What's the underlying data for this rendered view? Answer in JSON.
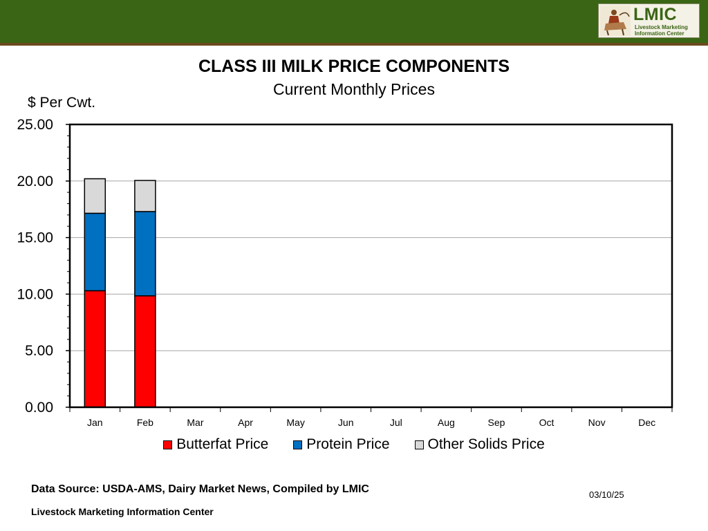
{
  "header": {
    "logo_main": "LMIC",
    "logo_line1": "Livestock Marketing",
    "logo_line2": "Information Center"
  },
  "colors": {
    "band": "#3a6514",
    "butterfat": "#ff0000",
    "protein": "#0070c0",
    "other": "#d9d9d9"
  },
  "chart_data": {
    "type": "bar",
    "stacked": true,
    "title": "CLASS III MILK PRICE COMPONENTS",
    "subtitle": "Current Monthly Prices",
    "ylabel": "$ Per Cwt.",
    "xlabel": "",
    "ylim": [
      0,
      25
    ],
    "yticks": [
      "0.00",
      "5.00",
      "10.00",
      "15.00",
      "20.00",
      "25.00"
    ],
    "grid": true,
    "legend_position": "bottom",
    "categories": [
      "Jan",
      "Feb",
      "Mar",
      "Apr",
      "May",
      "Jun",
      "Jul",
      "Aug",
      "Sep",
      "Oct",
      "Nov",
      "Dec"
    ],
    "series": [
      {
        "name": "Butterfat Price",
        "color": "#ff0000",
        "values": [
          10.3,
          9.85,
          null,
          null,
          null,
          null,
          null,
          null,
          null,
          null,
          null,
          null
        ]
      },
      {
        "name": "Protein Price",
        "color": "#0070c0",
        "values": [
          6.85,
          7.45,
          null,
          null,
          null,
          null,
          null,
          null,
          null,
          null,
          null,
          null
        ]
      },
      {
        "name": "Other Solids Price",
        "color": "#d9d9d9",
        "values": [
          3.05,
          2.75,
          null,
          null,
          null,
          null,
          null,
          null,
          null,
          null,
          null,
          null
        ]
      }
    ]
  },
  "footer": {
    "source": "Data Source:  USDA-AMS, Dairy Market News, Compiled by LMIC",
    "org": "Livestock Marketing Information Center",
    "date": "03/10/25"
  }
}
